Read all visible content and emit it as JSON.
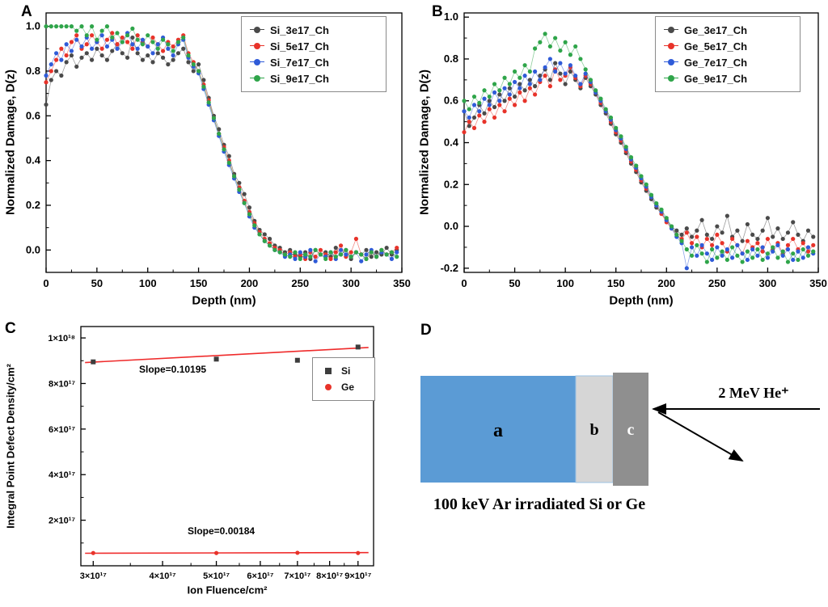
{
  "panels": {
    "a": {
      "label": "A"
    },
    "b": {
      "label": "B"
    },
    "c": {
      "label": "C"
    },
    "d": {
      "label": "D",
      "beam_label": "2 MeV He⁺",
      "layers": [
        "a",
        "b",
        "c"
      ],
      "caption": "100 keV Ar irradiated  Si or Ge",
      "colors": {
        "layer_a": "#5b9bd5",
        "layer_b": "#d6d6d6",
        "layer_c": "#8f8f8f"
      }
    }
  },
  "chart_data": [
    {
      "type": "scatter",
      "panel": "A",
      "title": "",
      "xlabel": "Depth (nm)",
      "ylabel": "Normalized Damage, D(z)",
      "xlim": [
        0,
        350
      ],
      "ylim": [
        -0.1,
        1.06
      ],
      "x_ticks": [
        0,
        50,
        100,
        150,
        200,
        250,
        300,
        350
      ],
      "x_tick_labels": [
        "0",
        "50",
        "100",
        "150",
        "200",
        "250",
        "300",
        "350"
      ],
      "x_minor_ticks": [
        25,
        75,
        125,
        175,
        225,
        275,
        325
      ],
      "y_ticks": [
        0.0,
        0.2,
        0.4,
        0.6,
        0.8,
        1.0
      ],
      "y_tick_labels": [
        "0.0",
        "0.2",
        "0.4",
        "0.6",
        "0.8",
        "1.0"
      ],
      "y_minor_ticks": [
        0.1,
        0.3,
        0.5,
        0.7,
        0.9
      ],
      "grid": false,
      "legend_position": "top-right",
      "x_start": 0,
      "x_step": 5,
      "series": [
        {
          "name": "Si_3e17_Ch",
          "color": "#4a4a4a",
          "marker": "circle",
          "y": [
            0.65,
            0.76,
            0.8,
            0.78,
            0.84,
            0.87,
            0.82,
            0.86,
            0.88,
            0.85,
            0.9,
            0.87,
            0.85,
            0.89,
            0.92,
            0.88,
            0.86,
            0.95,
            0.88,
            0.85,
            0.87,
            0.84,
            0.88,
            0.86,
            0.83,
            0.85,
            0.88,
            0.9,
            0.84,
            0.8,
            0.83,
            0.76,
            0.68,
            0.6,
            0.54,
            0.47,
            0.42,
            0.34,
            0.3,
            0.25,
            0.19,
            0.13,
            0.09,
            0.07,
            0.05,
            0.02,
            0.01,
            -0.01,
            0.0,
            -0.02,
            -0.03,
            -0.01,
            -0.04,
            0.0,
            -0.02,
            -0.01,
            -0.03,
            0.01,
            -0.02,
            0.0,
            -0.04,
            -0.01,
            -0.02,
            0.0,
            -0.03,
            -0.01,
            -0.02,
            0.01,
            -0.02,
            0.0
          ]
        },
        {
          "name": "Si_5e17_Ch",
          "color": "#e8332a",
          "marker": "circle",
          "y": [
            0.75,
            0.8,
            0.85,
            0.9,
            0.87,
            0.93,
            0.96,
            0.9,
            0.92,
            0.96,
            0.93,
            0.9,
            0.94,
            0.97,
            0.92,
            0.95,
            0.93,
            0.9,
            0.96,
            0.93,
            0.91,
            0.95,
            0.92,
            0.89,
            0.93,
            0.91,
            0.94,
            0.96,
            0.88,
            0.84,
            0.8,
            0.74,
            0.67,
            0.59,
            0.52,
            0.46,
            0.4,
            0.33,
            0.28,
            0.22,
            0.17,
            0.12,
            0.08,
            0.05,
            0.03,
            0.01,
            0.0,
            -0.02,
            -0.01,
            -0.03,
            -0.02,
            -0.04,
            -0.01,
            -0.03,
            0.0,
            -0.02,
            -0.04,
            -0.01,
            0.02,
            -0.03,
            -0.01,
            0.05,
            -0.02,
            -0.04,
            -0.01,
            -0.03,
            0.0,
            -0.02,
            -0.01,
            0.01
          ]
        },
        {
          "name": "Si_7e17_Ch",
          "color": "#2f5bd8",
          "marker": "circle",
          "y": [
            0.78,
            0.83,
            0.88,
            0.85,
            0.92,
            0.89,
            0.94,
            0.91,
            0.95,
            0.9,
            0.93,
            0.96,
            0.91,
            0.94,
            0.9,
            0.93,
            0.97,
            0.92,
            0.9,
            0.94,
            0.91,
            0.88,
            0.92,
            0.95,
            0.9,
            0.87,
            0.92,
            0.94,
            0.86,
            0.82,
            0.79,
            0.72,
            0.65,
            0.58,
            0.51,
            0.44,
            0.38,
            0.32,
            0.26,
            0.21,
            0.15,
            0.1,
            0.07,
            0.04,
            0.02,
            0.0,
            -0.01,
            -0.03,
            -0.02,
            -0.04,
            -0.01,
            -0.03,
            0.0,
            -0.05,
            -0.02,
            -0.03,
            -0.01,
            -0.04,
            0.0,
            -0.02,
            -0.03,
            -0.01,
            -0.05,
            -0.02,
            0.0,
            -0.03,
            -0.01,
            -0.02,
            -0.04,
            -0.01
          ]
        },
        {
          "name": "Si_9e17_Ch",
          "color": "#2fa54a",
          "marker": "circle",
          "y": [
            1.0,
            1.0,
            1.0,
            1.0,
            1.0,
            1.0,
            0.98,
            1.0,
            0.96,
            1.0,
            0.94,
            0.98,
            1.0,
            0.95,
            0.97,
            0.93,
            0.96,
            0.99,
            0.94,
            0.92,
            0.96,
            0.93,
            0.9,
            0.94,
            0.92,
            0.89,
            0.93,
            0.95,
            0.87,
            0.83,
            0.8,
            0.73,
            0.66,
            0.59,
            0.52,
            0.45,
            0.39,
            0.33,
            0.27,
            0.21,
            0.16,
            0.11,
            0.07,
            0.04,
            0.02,
            0.0,
            -0.01,
            -0.02,
            -0.03,
            -0.01,
            -0.04,
            -0.02,
            -0.03,
            0.0,
            -0.02,
            -0.04,
            -0.01,
            -0.03,
            -0.02,
            0.0,
            -0.03,
            -0.01,
            -0.02,
            -0.04,
            -0.01,
            -0.03,
            0.0,
            -0.02,
            -0.01,
            -0.03
          ]
        }
      ]
    },
    {
      "type": "scatter",
      "panel": "B",
      "title": "",
      "xlabel": "Depth (nm)",
      "ylabel": "Normalized Damage, D(z)",
      "xlim": [
        0,
        350
      ],
      "ylim": [
        -0.22,
        1.02
      ],
      "x_ticks": [
        0,
        50,
        100,
        150,
        200,
        250,
        300,
        350
      ],
      "x_tick_labels": [
        "0",
        "50",
        "100",
        "150",
        "200",
        "250",
        "300",
        "350"
      ],
      "x_minor_ticks": [
        25,
        75,
        125,
        175,
        225,
        275,
        325
      ],
      "y_ticks": [
        -0.2,
        0.0,
        0.2,
        0.4,
        0.6,
        0.8,
        1.0
      ],
      "y_tick_labels": [
        "-0.2",
        "0.0",
        "0.2",
        "0.4",
        "0.6",
        "0.8",
        "1.0"
      ],
      "y_minor_ticks": [
        -0.1,
        0.1,
        0.3,
        0.5,
        0.7,
        0.9
      ],
      "grid": false,
      "legend_position": "top-right",
      "x_start": 0,
      "x_step": 5,
      "series": [
        {
          "name": "Ge_3e17_Ch",
          "color": "#4a4a4a",
          "marker": "circle",
          "y": [
            0.55,
            0.48,
            0.52,
            0.58,
            0.54,
            0.6,
            0.57,
            0.63,
            0.6,
            0.66,
            0.62,
            0.68,
            0.65,
            0.7,
            0.67,
            0.72,
            0.75,
            0.7,
            0.78,
            0.73,
            0.68,
            0.74,
            0.7,
            0.66,
            0.71,
            0.67,
            0.63,
            0.58,
            0.54,
            0.49,
            0.44,
            0.4,
            0.35,
            0.3,
            0.26,
            0.21,
            0.17,
            0.13,
            0.09,
            0.06,
            0.03,
            0.0,
            -0.02,
            -0.04,
            -0.01,
            -0.05,
            -0.02,
            0.03,
            -0.04,
            -0.06,
            0.0,
            -0.03,
            0.05,
            -0.05,
            -0.02,
            -0.07,
            0.01,
            -0.04,
            -0.06,
            -0.02,
            0.04,
            -0.05,
            -0.01,
            -0.06,
            -0.03,
            0.02,
            -0.04,
            -0.07,
            -0.02,
            -0.05
          ]
        },
        {
          "name": "Ge_5e17_Ch",
          "color": "#e8332a",
          "marker": "circle",
          "y": [
            0.45,
            0.5,
            0.47,
            0.53,
            0.5,
            0.56,
            0.52,
            0.58,
            0.55,
            0.61,
            0.58,
            0.64,
            0.6,
            0.66,
            0.63,
            0.69,
            0.72,
            0.67,
            0.75,
            0.7,
            0.72,
            0.76,
            0.71,
            0.67,
            0.72,
            0.68,
            0.64,
            0.59,
            0.55,
            0.5,
            0.45,
            0.41,
            0.36,
            0.31,
            0.27,
            0.22,
            0.18,
            0.14,
            0.1,
            0.06,
            0.02,
            -0.01,
            -0.04,
            -0.06,
            -0.03,
            -0.08,
            -0.05,
            -0.1,
            -0.06,
            -0.09,
            -0.04,
            -0.08,
            -0.12,
            -0.06,
            -0.09,
            -0.13,
            -0.07,
            -0.1,
            -0.08,
            -0.12,
            -0.06,
            -0.11,
            -0.08,
            -0.13,
            -0.09,
            -0.06,
            -0.11,
            -0.08,
            -0.12,
            -0.09
          ]
        },
        {
          "name": "Ge_7e17_Ch",
          "color": "#2f5bd8",
          "marker": "circle",
          "y": [
            0.55,
            0.52,
            0.58,
            0.55,
            0.61,
            0.58,
            0.64,
            0.6,
            0.66,
            0.63,
            0.69,
            0.66,
            0.72,
            0.68,
            0.74,
            0.7,
            0.76,
            0.8,
            0.74,
            0.78,
            0.73,
            0.77,
            0.72,
            0.68,
            0.73,
            0.69,
            0.64,
            0.6,
            0.55,
            0.51,
            0.46,
            0.42,
            0.37,
            0.32,
            0.28,
            0.23,
            0.19,
            0.14,
            0.1,
            0.07,
            0.03,
            -0.01,
            -0.05,
            -0.08,
            -0.2,
            -0.1,
            -0.14,
            -0.09,
            -0.13,
            -0.16,
            -0.1,
            -0.14,
            -0.11,
            -0.15,
            -0.09,
            -0.13,
            -0.16,
            -0.11,
            -0.14,
            -0.1,
            -0.15,
            -0.12,
            -0.09,
            -0.14,
            -0.11,
            -0.16,
            -0.12,
            -0.15,
            -0.1,
            -0.13
          ]
        },
        {
          "name": "Ge_9e17_Ch",
          "color": "#2fa54a",
          "marker": "circle",
          "y": [
            0.6,
            0.56,
            0.62,
            0.59,
            0.65,
            0.62,
            0.68,
            0.65,
            0.71,
            0.68,
            0.74,
            0.71,
            0.77,
            0.74,
            0.85,
            0.88,
            0.92,
            0.86,
            0.9,
            0.84,
            0.88,
            0.82,
            0.86,
            0.8,
            0.75,
            0.7,
            0.65,
            0.61,
            0.56,
            0.52,
            0.47,
            0.43,
            0.38,
            0.33,
            0.29,
            0.24,
            0.2,
            0.15,
            0.11,
            0.08,
            0.04,
            0.0,
            -0.04,
            -0.07,
            -0.11,
            -0.14,
            -0.09,
            -0.13,
            -0.17,
            -0.11,
            -0.15,
            -0.12,
            -0.16,
            -0.1,
            -0.14,
            -0.17,
            -0.12,
            -0.15,
            -0.11,
            -0.16,
            -0.13,
            -0.1,
            -0.15,
            -0.12,
            -0.17,
            -0.13,
            -0.16,
            -0.11,
            -0.14,
            -0.12
          ]
        }
      ]
    },
    {
      "type": "scatter",
      "panel": "C",
      "title": "",
      "xlabel": "Ion Fluence/cm²",
      "ylabel": "Integral Point Defect Density/cm²",
      "x_scale": "log",
      "xlim": [
        2.85e+17,
        9.6e+17
      ],
      "ylim": [
        0,
        1.05e+18
      ],
      "x_ticks": [
        3e+17,
        4e+17,
        5e+17,
        6e+17,
        7e+17,
        8e+17,
        9e+17
      ],
      "x_tick_labels": [
        "3×10¹⁷",
        "4×10¹⁷",
        "5×10¹⁷",
        "6×10¹⁷",
        "7×10¹⁷",
        "8×10¹⁷",
        "9×10¹⁷"
      ],
      "x_minor_ticks": [
        3.5e+17,
        4.5e+17,
        5.5e+17,
        6.5e+17,
        7.5e+17,
        8.5e+17
      ],
      "y_ticks": [
        2e+17,
        4e+17,
        6e+17,
        8e+17,
        1e+18
      ],
      "y_tick_labels": [
        "2×10¹⁷",
        "4×10¹⁷",
        "6×10¹⁷",
        "8×10¹⁷",
        "1×10¹⁸"
      ],
      "y_minor_ticks": [
        1e+17,
        3e+17,
        5e+17,
        7e+17,
        9e+17
      ],
      "grid": false,
      "legend_position": "right",
      "series": [
        {
          "name": "Si",
          "color": "#3d3d3d",
          "marker": "square",
          "line": false,
          "points": [
            [
              3e+17,
              8.95e+17
            ],
            [
              5e+17,
              9.07e+17
            ],
            [
              7e+17,
              9.02e+17
            ],
            [
              9e+17,
              9.6e+17
            ]
          ]
        },
        {
          "name": "Ge",
          "color": "#e8332a",
          "marker": "circle",
          "line": false,
          "points": [
            [
              3e+17,
              5.6e+16
            ],
            [
              5e+17,
              5.6e+16
            ],
            [
              7e+17,
              5.7e+16
            ],
            [
              9e+17,
              5.6e+16
            ]
          ]
        }
      ],
      "fit_lines": [
        {
          "label": "Slope=0.10195",
          "color": "#ef2b2b",
          "x1": 2.9e+17,
          "y1": 8.92e+17,
          "x2": 9.4e+17,
          "y2": 9.58e+17
        },
        {
          "label": "Slope=0.00184",
          "color": "#ef2b2b",
          "x1": 2.9e+17,
          "y1": 5.5e+16,
          "x2": 9.4e+17,
          "y2": 5.8e+16
        }
      ]
    }
  ]
}
